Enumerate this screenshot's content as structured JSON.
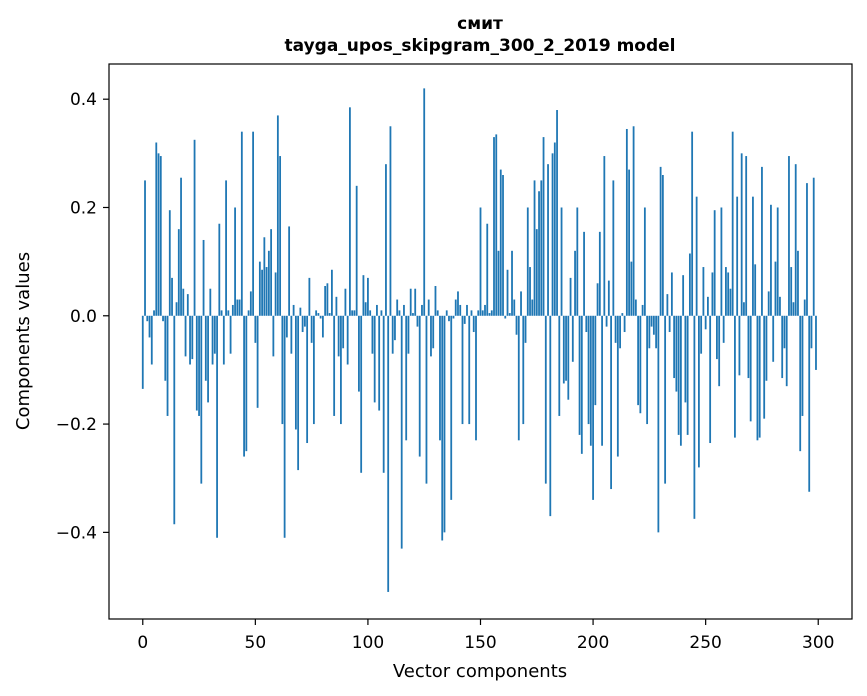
{
  "chart_data": {
    "type": "bar",
    "title_lines": [
      "смит",
      "tayga_upos_skipgram_300_2_2019 model"
    ],
    "xlabel": "Vector components",
    "ylabel": "Components values",
    "xlim": [
      -15,
      315
    ],
    "ylim": [
      -0.56,
      0.465
    ],
    "x_ticks": [
      0,
      50,
      100,
      150,
      200,
      250,
      300
    ],
    "x_tick_labels": [
      "0",
      "50",
      "100",
      "150",
      "200",
      "250",
      "300"
    ],
    "y_ticks": [
      -0.4,
      -0.2,
      0.0,
      0.2,
      0.4
    ],
    "y_tick_labels": [
      "−0.4",
      "−0.2",
      "0.0",
      "0.2",
      "0.4"
    ],
    "series": [
      {
        "name": "components",
        "color": "#1f77b4",
        "x_start": 0,
        "values": [
          -0.135,
          0.25,
          -0.01,
          -0.04,
          -0.09,
          0.01,
          0.32,
          0.3,
          0.295,
          -0.01,
          -0.12,
          -0.185,
          0.195,
          0.07,
          -0.385,
          0.025,
          0.16,
          0.255,
          0.05,
          -0.075,
          0.04,
          -0.09,
          -0.08,
          0.325,
          -0.175,
          -0.185,
          -0.31,
          0.14,
          -0.12,
          -0.16,
          0.05,
          -0.09,
          -0.07,
          -0.41,
          0.17,
          0.01,
          -0.09,
          0.25,
          0.01,
          -0.07,
          0.02,
          0.2,
          0.03,
          0.03,
          0.34,
          -0.26,
          -0.25,
          0.01,
          0.045,
          0.34,
          -0.05,
          -0.17,
          0.1,
          0.085,
          0.145,
          0.09,
          0.12,
          0.16,
          -0.075,
          0.08,
          0.37,
          0.295,
          -0.2,
          -0.41,
          -0.04,
          0.165,
          -0.07,
          0.02,
          -0.21,
          -0.285,
          0.015,
          -0.03,
          -0.02,
          -0.235,
          0.07,
          -0.05,
          -0.2,
          0.01,
          0.005,
          -0.005,
          -0.04,
          0.055,
          0.06,
          0.005,
          0.085,
          -0.185,
          0.035,
          -0.075,
          -0.2,
          -0.06,
          0.05,
          -0.09,
          0.385,
          0.01,
          0.01,
          0.24,
          -0.14,
          -0.29,
          0.075,
          0.025,
          0.07,
          0.01,
          -0.07,
          -0.16,
          0.02,
          -0.175,
          0.01,
          -0.29,
          0.28,
          -0.51,
          0.35,
          -0.07,
          -0.045,
          0.03,
          0.01,
          -0.43,
          0.02,
          -0.23,
          -0.07,
          0.05,
          0.005,
          0.05,
          -0.02,
          -0.26,
          0.02,
          0.42,
          -0.31,
          0.03,
          -0.075,
          -0.06,
          0.055,
          0.01,
          -0.23,
          -0.415,
          -0.4,
          0.01,
          -0.01,
          -0.34,
          -0.005,
          0.03,
          0.045,
          0.02,
          -0.2,
          -0.015,
          0.02,
          -0.2,
          0.01,
          -0.03,
          -0.23,
          0.01,
          0.2,
          0.01,
          0.02,
          0.17,
          0.005,
          0.01,
          0.33,
          0.335,
          0.12,
          0.27,
          0.26,
          -0.005,
          0.085,
          0.005,
          0.12,
          0.03,
          -0.035,
          -0.23,
          0.045,
          -0.2,
          -0.05,
          0.2,
          0.09,
          0.03,
          0.25,
          0.16,
          0.23,
          0.25,
          0.33,
          -0.31,
          0.28,
          -0.37,
          0.3,
          0.32,
          0.38,
          -0.185,
          0.2,
          -0.125,
          -0.12,
          -0.155,
          0.07,
          -0.085,
          0.12,
          0.2,
          -0.22,
          -0.255,
          0.155,
          -0.03,
          -0.2,
          -0.24,
          -0.34,
          -0.165,
          0.06,
          0.155,
          -0.24,
          0.295,
          -0.02,
          0.065,
          -0.32,
          0.25,
          -0.05,
          -0.26,
          -0.06,
          0.005,
          -0.03,
          0.345,
          0.27,
          0.1,
          0.35,
          0.03,
          -0.165,
          -0.18,
          0.02,
          0.2,
          -0.2,
          -0.06,
          -0.02,
          -0.035,
          -0.06,
          -0.4,
          0.275,
          0.26,
          -0.31,
          0.04,
          -0.03,
          0.08,
          -0.115,
          -0.14,
          -0.22,
          -0.24,
          0.075,
          -0.16,
          -0.22,
          0.115,
          0.34,
          -0.375,
          0.22,
          -0.28,
          -0.07,
          0.09,
          -0.025,
          0.035,
          -0.235,
          0.08,
          0.195,
          -0.08,
          -0.13,
          0.2,
          -0.05,
          0.09,
          0.08,
          0.05,
          0.34,
          -0.225,
          0.22,
          -0.11,
          0.3,
          0.025,
          0.295,
          -0.115,
          -0.195,
          0.22,
          0.095,
          -0.23,
          -0.225,
          0.275,
          -0.19,
          -0.12,
          0.045,
          0.205,
          -0.085,
          0.1,
          0.2,
          0.035,
          -0.115,
          -0.06,
          -0.13,
          0.295,
          0.09,
          0.025,
          0.28,
          0.12,
          -0.25,
          -0.185,
          0.03,
          0.245,
          -0.325,
          -0.06,
          0.255,
          -0.1
        ]
      }
    ]
  }
}
